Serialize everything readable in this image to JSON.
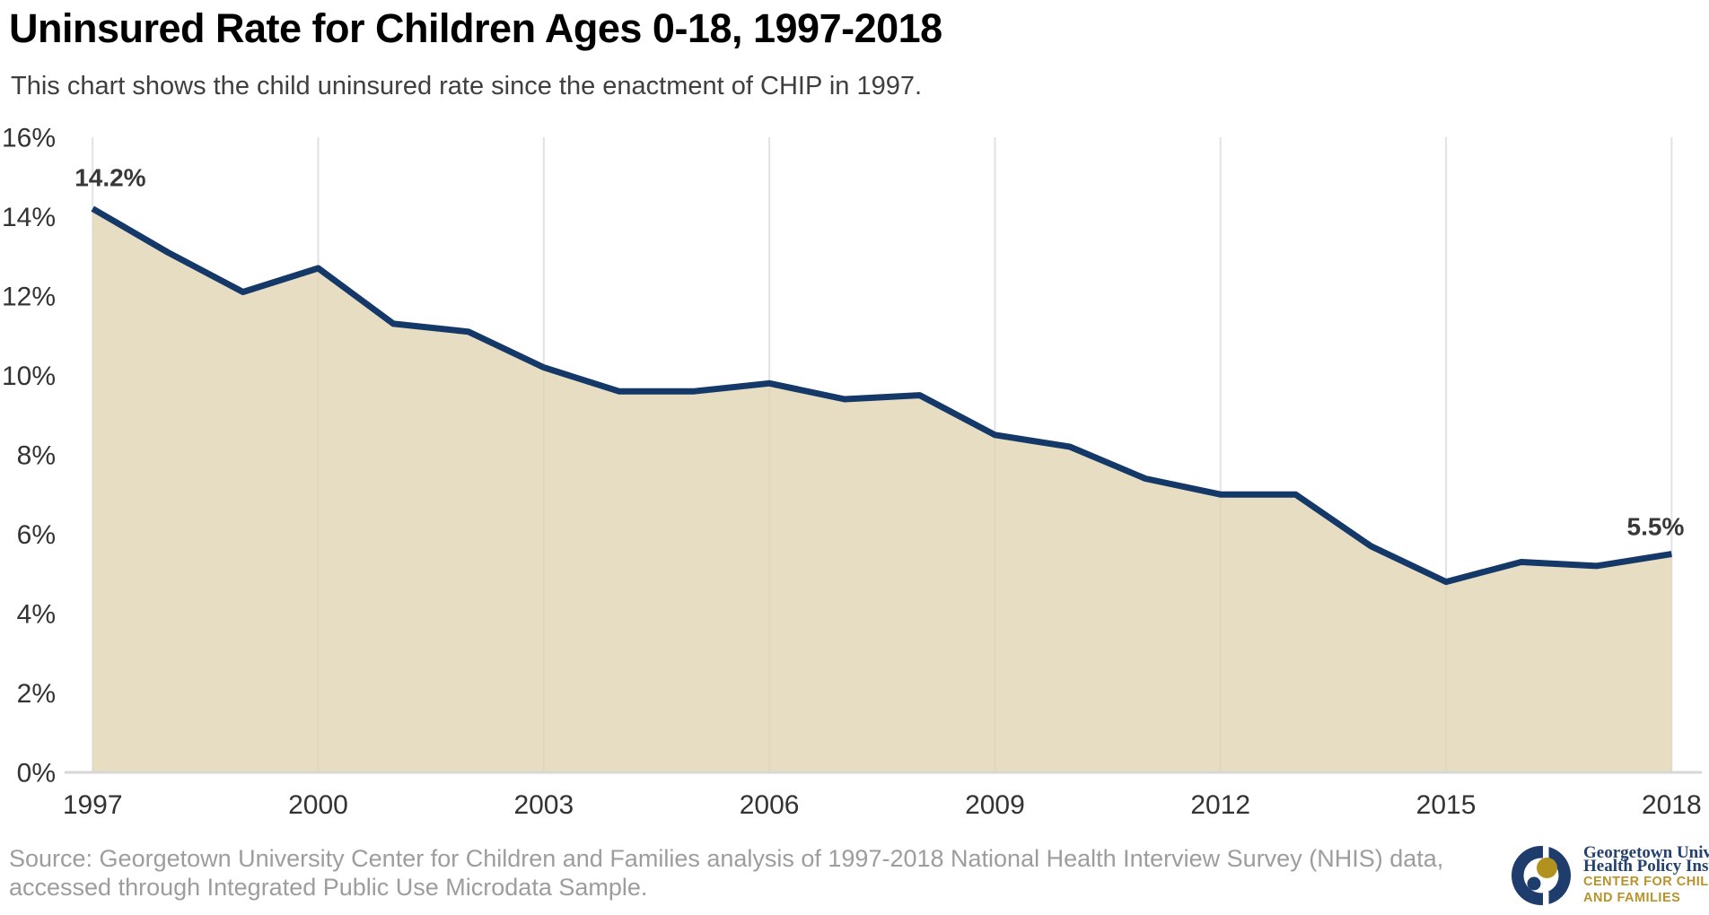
{
  "header": {
    "title": "Uninsured Rate for Children Ages 0-18, 1997-2018",
    "subtitle": "This chart shows the child uninsured rate since the enactment of CHIP in 1997."
  },
  "chart_data": {
    "type": "area",
    "title": "Uninsured Rate for Children Ages 0-18, 1997-2018",
    "series_name": "Child uninsured rate (%)",
    "x": [
      1997,
      1998,
      1999,
      2000,
      2001,
      2002,
      2003,
      2004,
      2005,
      2006,
      2007,
      2008,
      2009,
      2010,
      2011,
      2012,
      2013,
      2014,
      2015,
      2016,
      2017,
      2018
    ],
    "values": [
      14.2,
      13.1,
      12.1,
      12.7,
      11.3,
      11.1,
      10.2,
      9.6,
      9.6,
      9.8,
      9.4,
      9.5,
      8.5,
      8.2,
      7.4,
      7.0,
      7.0,
      5.7,
      4.8,
      5.3,
      5.2,
      5.5
    ],
    "xlabel": "",
    "ylabel": "",
    "ylim": [
      0,
      16
    ],
    "ytick_step": 2,
    "ytick_suffix": "%",
    "xticks": [
      1997,
      2000,
      2003,
      2006,
      2009,
      2012,
      2015,
      2018
    ],
    "grid": "vertical-only",
    "legend": "none",
    "annotations": [
      {
        "x": 1997,
        "label": "14.2%",
        "align": "start"
      },
      {
        "x": 2018,
        "label": "5.5%",
        "align": "end"
      }
    ],
    "colors": {
      "line": "#143867",
      "fill": "rgba(224,212,180,0.8)",
      "grid": "#e2e2e2",
      "baseline": "#d7d7d7",
      "tick_text": "#333333",
      "annotation_text": "#383838"
    }
  },
  "footer": {
    "source": "Source: Georgetown University Center for Children and Families analysis of 1997-2018 National Health Interview Survey (NHIS) data, accessed through Integrated Public Use Microdata Sample."
  },
  "logo": {
    "org_line1": "Georgetown University",
    "org_line2": "Health Policy Institute",
    "center_line1": "CENTER FOR CHILDREN",
    "center_line2": "AND FAMILIES",
    "navy": "#1e3d6d",
    "gold": "#b2921f"
  }
}
